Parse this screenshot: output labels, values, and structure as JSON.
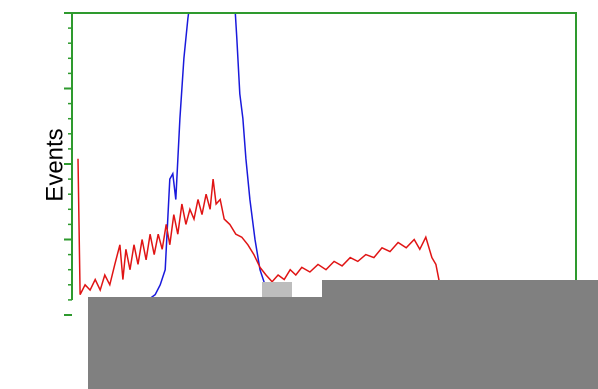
{
  "chart_data": {
    "type": "line",
    "y_label": "Events",
    "xlim": [
      0,
      100
    ],
    "ylim": [
      0,
      4
    ],
    "yticks": [
      0,
      1,
      2,
      3,
      4
    ],
    "series": [
      {
        "color": "#1a1adc",
        "x": [
          15.1,
          16.5,
          17.5,
          18.5,
          19.4,
          20.0,
          20.6,
          21.4,
          22.2,
          23.0,
          23.8,
          32.1,
          32.7,
          33.3,
          33.9,
          34.5,
          35.3,
          36.3,
          37.3,
          38.3,
          39.3
        ],
        "values": [
          0.2,
          0.27,
          0.4,
          0.6,
          1.8,
          1.87,
          1.53,
          2.6,
          3.4,
          3.93,
          4.33,
          4.33,
          3.67,
          2.93,
          2.6,
          2.07,
          1.53,
          1.0,
          0.6,
          0.4,
          0.23
        ]
      },
      {
        "color": "#e01414",
        "x": [
          1.2,
          1.6,
          2.6,
          3.6,
          4.6,
          5.6,
          6.5,
          7.5,
          8.5,
          9.5,
          10.1,
          10.7,
          11.5,
          12.3,
          13.1,
          13.9,
          14.7,
          15.5,
          16.3,
          17.1,
          17.9,
          18.7,
          19.4,
          20.2,
          21.0,
          21.8,
          22.6,
          23.4,
          24.2,
          25.0,
          25.8,
          26.6,
          27.4,
          28.0,
          28.6,
          29.4,
          30.2,
          31.3,
          32.5,
          33.7,
          34.9,
          36.1,
          37.3,
          38.5,
          39.7,
          40.9,
          42.1,
          43.3,
          44.4,
          45.6,
          47.2,
          48.8,
          50.4,
          52.0,
          53.6,
          55.2,
          56.7,
          58.3,
          59.9,
          61.5,
          63.1,
          64.7,
          66.3,
          67.9,
          69.0,
          70.2,
          71.4,
          72.2,
          73.0
        ],
        "values": [
          2.07,
          0.27,
          0.4,
          0.33,
          0.47,
          0.33,
          0.53,
          0.4,
          0.67,
          0.93,
          0.47,
          0.87,
          0.6,
          0.93,
          0.67,
          1.0,
          0.73,
          1.07,
          0.8,
          1.07,
          0.87,
          1.2,
          0.93,
          1.33,
          1.07,
          1.47,
          1.2,
          1.4,
          1.27,
          1.53,
          1.33,
          1.6,
          1.4,
          1.8,
          1.47,
          1.53,
          1.27,
          1.2,
          1.07,
          1.03,
          0.93,
          0.8,
          0.63,
          0.53,
          0.44,
          0.53,
          0.47,
          0.6,
          0.53,
          0.63,
          0.57,
          0.67,
          0.6,
          0.71,
          0.65,
          0.76,
          0.71,
          0.8,
          0.76,
          0.89,
          0.84,
          0.96,
          0.89,
          1.0,
          0.87,
          1.03,
          0.76,
          0.67,
          0.4
        ]
      }
    ]
  }
}
